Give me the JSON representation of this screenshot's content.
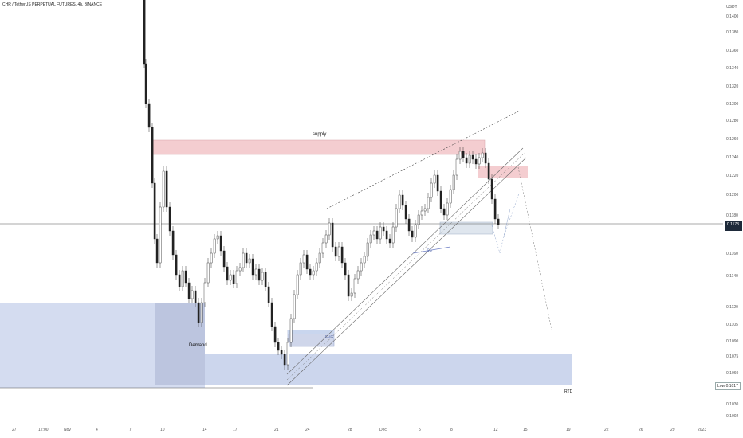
{
  "header": {
    "symbol_line": "CHR / TetherUS PERPETUAL FUTURES, 4h, BINANCE"
  },
  "price_axis": {
    "currency": "USDT",
    "ticks": [
      "0.1400",
      "0.1380",
      "0.1360",
      "0.1340",
      "0.1320",
      "0.1300",
      "0.1280",
      "0.1260",
      "0.1240",
      "0.1220",
      "0.1200",
      "0.1180",
      "0.1160",
      "0.1140",
      "0.1120",
      "0.1105",
      "0.1090",
      "0.1075",
      "0.1060",
      "0.1045",
      "0.1030",
      "0.1017",
      "0.1002",
      "0.0989"
    ],
    "current_price_tag": "0.1173",
    "low_label": "Low",
    "low_value": "0.1017"
  },
  "time_axis": {
    "ticks": [
      "27",
      "12:00",
      "Nov",
      "4",
      "7",
      "10",
      "14",
      "17",
      "21",
      "24",
      "28",
      "Dec",
      "5",
      "8",
      "12",
      "15",
      "19",
      "22",
      "26",
      "29",
      "2023"
    ]
  },
  "annotations": {
    "supply": "supply",
    "demand": "Demand",
    "fvg": "FVG",
    "ss": "SS",
    "rtd": "RTD"
  },
  "colors": {
    "supply_zone": "#f2c4c8",
    "demand_zone": "#b7c4e6",
    "candle_up": "#ffffff",
    "candle_down": "#222222",
    "price_line": "#444444"
  }
}
